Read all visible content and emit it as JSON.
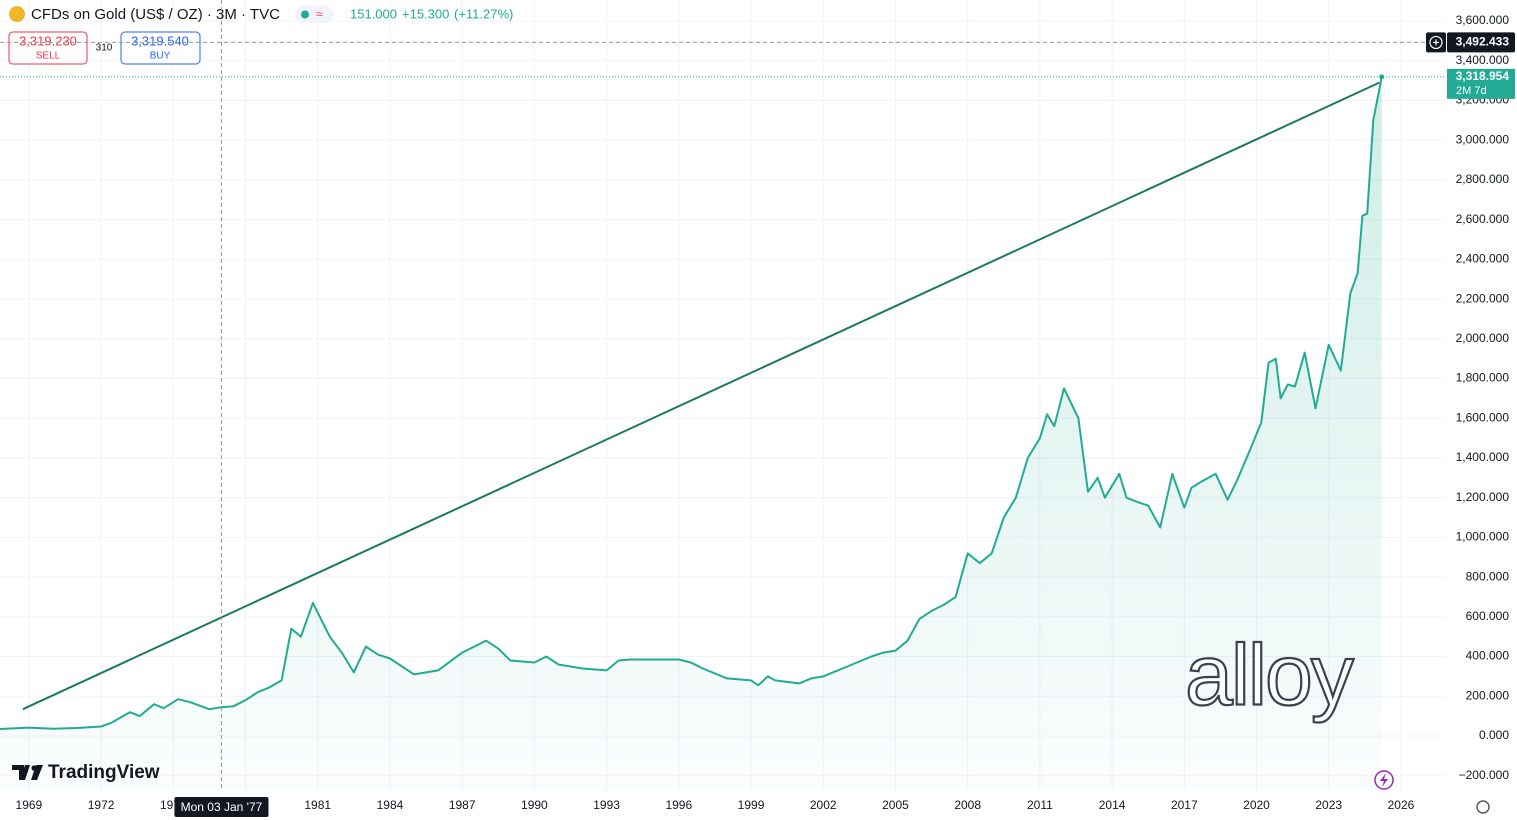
{
  "toolbar": {
    "symbol": "CFDs on Gold (US$ / OZ) · 3M · TVC",
    "ohlc_value": "151.000",
    "change": "+15.300",
    "change_pct": "(+11.27%)",
    "sell_price": "3,319.230",
    "sell_label": "SELL",
    "spread": "310",
    "buy_price": "3,319.540",
    "buy_label": "BUY"
  },
  "branding": {
    "logo_text": "TradingView",
    "watermark": "alloy"
  },
  "chart_data": {
    "type": "line",
    "x": [
      1967.8,
      1969,
      1970,
      1971,
      1972,
      1972.4,
      1973.2,
      1973.6,
      1974.2,
      1974.6,
      1975.2,
      1975.7,
      1976.5,
      1977,
      1977.5,
      1978,
      1978.5,
      1979,
      1979.5,
      1979.9,
      1980.3,
      1980.8,
      1981.5,
      1982,
      1982.5,
      1983,
      1983.5,
      1984,
      1985,
      1985.5,
      1986,
      1987,
      1987.5,
      1988,
      1988.5,
      1989,
      1990,
      1990.5,
      1991,
      1992,
      1993,
      1993.5,
      1994,
      1995,
      1996,
      1996.5,
      1997,
      1998,
      1999,
      1999.3,
      1999.7,
      2000,
      2001,
      2001.5,
      2002,
      2003,
      2004,
      2004.5,
      2005,
      2005.5,
      2006,
      2006.5,
      2007,
      2007.5,
      2008,
      2008.5,
      2009,
      2009.5,
      2010,
      2010.5,
      2011,
      2011.3,
      2011.6,
      2012,
      2012.6,
      2013,
      2013.4,
      2013.7,
      2014.3,
      2014.6,
      2015,
      2015.5,
      2016,
      2016.5,
      2017,
      2017.3,
      2017.7,
      2018.3,
      2018.8,
      2019.2,
      2019.8,
      2020.2,
      2020.5,
      2020.8,
      2021,
      2021.3,
      2021.6,
      2022,
      2022.45,
      2023,
      2023.5,
      2023.9,
      2024.2,
      2024.4,
      2024.6,
      2024.85,
      2025.2
    ],
    "series": [
      {
        "color": "#22ab94",
        "values": [
          35,
          42,
          36,
          40,
          48,
          65,
          120,
          100,
          160,
          140,
          185,
          170,
          135,
          145,
          150,
          180,
          220,
          245,
          280,
          540,
          500,
          670,
          500,
          420,
          320,
          450,
          410,
          390,
          310,
          320,
          330,
          420,
          450,
          480,
          440,
          380,
          370,
          400,
          360,
          340,
          330,
          380,
          385,
          385,
          385,
          370,
          340,
          290,
          280,
          255,
          300,
          280,
          265,
          290,
          300,
          350,
          400,
          420,
          430,
          480,
          590,
          630,
          660,
          700,
          920,
          870,
          920,
          1100,
          1200,
          1400,
          1500,
          1620,
          1560,
          1750,
          1600,
          1230,
          1300,
          1200,
          1320,
          1200,
          1180,
          1160,
          1050,
          1320,
          1150,
          1250,
          1280,
          1320,
          1190,
          1290,
          1460,
          1580,
          1880,
          1900,
          1700,
          1770,
          1760,
          1930,
          1650,
          1970,
          1840,
          2230,
          2330,
          2620,
          2630,
          3100,
          3318.954
        ]
      }
    ],
    "trend_line": {
      "color": "#1b7a5f",
      "x": [
        1968.75,
        2025.1
      ],
      "values": [
        135,
        3290
      ]
    },
    "xlim": [
      1967.8,
      2027.83
    ],
    "xticks": [
      1969,
      1972,
      1975,
      1978,
      1981,
      1984,
      1987,
      1990,
      1993,
      1996,
      1999,
      2002,
      2005,
      2008,
      2011,
      2014,
      2017,
      2020,
      2023,
      2026
    ],
    "ylim": [
      -272,
      3706
    ],
    "yticks": [
      {
        "value": -200,
        "label": "−200.000"
      },
      {
        "value": 0,
        "label": "0.000"
      },
      {
        "value": 200,
        "label": "200.000"
      },
      {
        "value": 400,
        "label": "400.000"
      },
      {
        "value": 600,
        "label": "600.000"
      },
      {
        "value": 800,
        "label": "800.000"
      },
      {
        "value": 1000,
        "label": "1,000.000"
      },
      {
        "value": 1200,
        "label": "1,200.000"
      },
      {
        "value": 1400,
        "label": "1,400.000"
      },
      {
        "value": 1600,
        "label": "1,600.000"
      },
      {
        "value": 1800,
        "label": "1,800.000"
      },
      {
        "value": 2000,
        "label": "2,000.000"
      },
      {
        "value": 2200,
        "label": "2,200.000"
      },
      {
        "value": 2400,
        "label": "2,400.000"
      },
      {
        "value": 2600,
        "label": "2,600.000"
      },
      {
        "value": 2800,
        "label": "2,800.000"
      },
      {
        "value": 3000,
        "label": "3,000.000"
      },
      {
        "value": 3200,
        "label": "3,200.000"
      },
      {
        "value": 3400,
        "label": "3,400.000"
      },
      {
        "value": 3600,
        "label": "3,600.000"
      }
    ],
    "grid": true,
    "crosshair": {
      "x": 1977.0,
      "x_label": "Mon 03 Jan '77",
      "y": 3492.433,
      "y_label": "3,492.433"
    },
    "last_price": {
      "value": 3318.954,
      "label": "3,318.954",
      "countdown": "2M 7d"
    }
  }
}
